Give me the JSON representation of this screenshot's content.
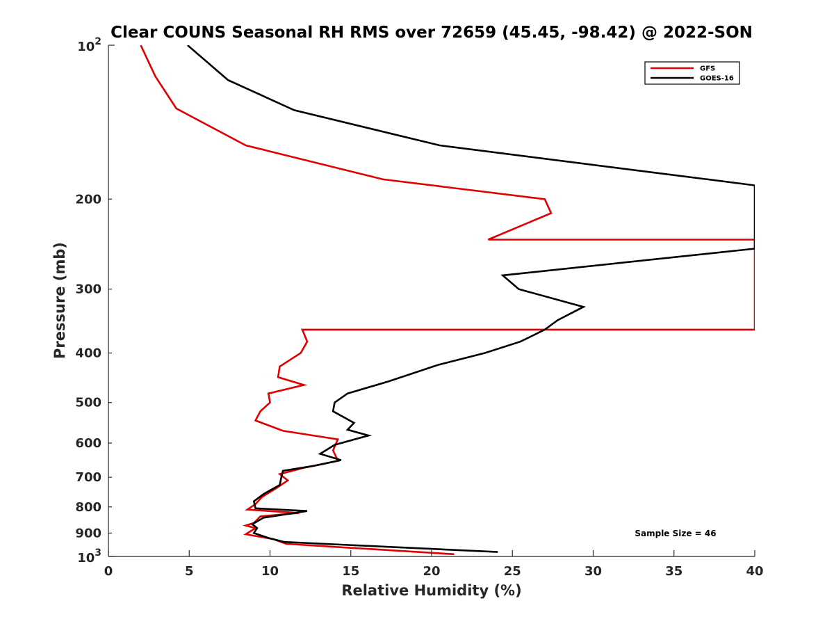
{
  "chart_data": {
    "type": "line",
    "title": "Clear COUNS Seasonal RH RMS over 72659 (45.45, -98.42) @ 2022-SON",
    "xlabel": "Relative Humidity (%)",
    "ylabel": "Pressure (mb)",
    "xlim": [
      0,
      40
    ],
    "ylim": [
      100,
      1000
    ],
    "y_scale": "log",
    "y_reversed": true,
    "x_ticks": [
      0,
      5,
      10,
      15,
      20,
      25,
      30,
      35,
      40
    ],
    "x_tick_labels": [
      "0",
      "5",
      "10",
      "15",
      "20",
      "25",
      "30",
      "35",
      "40"
    ],
    "y_ticks": [
      200,
      300,
      400,
      500,
      600,
      700,
      800,
      900
    ],
    "y_tick_labels": [
      "200",
      "300",
      "400",
      "500",
      "600",
      "700",
      "800",
      "900"
    ],
    "y_end_tick_base": "10",
    "y_top_exp": "2",
    "y_bottom_exp": "3",
    "legend_position": "top-right",
    "annotation": "Sample Size = 46",
    "series": [
      {
        "name": "GFS",
        "color": "#e00000",
        "points": [
          [
            2.0,
            100
          ],
          [
            2.9,
            115
          ],
          [
            4.2,
            133
          ],
          [
            8.5,
            157
          ],
          [
            17.0,
            183
          ],
          [
            27.0,
            200
          ],
          [
            27.4,
            213
          ],
          [
            23.5,
            240
          ],
          [
            40.0,
            240
          ],
          [
            40.0,
            360
          ],
          [
            12.0,
            360
          ],
          [
            12.3,
            380
          ],
          [
            11.9,
            400
          ],
          [
            10.6,
            425
          ],
          [
            10.5,
            446
          ],
          [
            12.1,
            462
          ],
          [
            9.9,
            480
          ],
          [
            10.0,
            500
          ],
          [
            9.4,
            520
          ],
          [
            9.1,
            542
          ],
          [
            10.8,
            568
          ],
          [
            14.2,
            590
          ],
          [
            13.9,
            620
          ],
          [
            14.2,
            650
          ],
          [
            12.0,
            672
          ],
          [
            10.6,
            690
          ],
          [
            11.1,
            710
          ],
          [
            10.4,
            735
          ],
          [
            9.5,
            765
          ],
          [
            9.1,
            790
          ],
          [
            8.6,
            810
          ],
          [
            11.8,
            822
          ],
          [
            9.4,
            835
          ],
          [
            9.0,
            860
          ],
          [
            8.5,
            870
          ],
          [
            9.1,
            880
          ],
          [
            8.5,
            905
          ],
          [
            10.2,
            925
          ],
          [
            11.0,
            945
          ],
          [
            21.4,
            990
          ]
        ]
      },
      {
        "name": "GOES-16",
        "color": "#000000",
        "points": [
          [
            4.9,
            100
          ],
          [
            7.4,
            117
          ],
          [
            11.5,
            134
          ],
          [
            20.5,
            157
          ],
          [
            40.0,
            188
          ],
          [
            40.0,
            250
          ],
          [
            24.4,
            282
          ],
          [
            25.4,
            300
          ],
          [
            29.4,
            325
          ],
          [
            27.8,
            345
          ],
          [
            27.0,
            360
          ],
          [
            25.5,
            380
          ],
          [
            23.3,
            400
          ],
          [
            20.4,
            422
          ],
          [
            17.3,
            455
          ],
          [
            14.8,
            480
          ],
          [
            14.0,
            500
          ],
          [
            13.9,
            520
          ],
          [
            15.2,
            548
          ],
          [
            14.8,
            565
          ],
          [
            16.1,
            580
          ],
          [
            14.0,
            605
          ],
          [
            13.1,
            630
          ],
          [
            14.4,
            648
          ],
          [
            12.7,
            665
          ],
          [
            10.8,
            680
          ],
          [
            10.7,
            700
          ],
          [
            10.6,
            725
          ],
          [
            9.6,
            755
          ],
          [
            9.0,
            780
          ],
          [
            9.1,
            805
          ],
          [
            12.3,
            815
          ],
          [
            9.6,
            840
          ],
          [
            8.9,
            865
          ],
          [
            9.2,
            880
          ],
          [
            9.0,
            900
          ],
          [
            9.9,
            920
          ],
          [
            10.9,
            937
          ],
          [
            24.1,
            980
          ]
        ]
      }
    ]
  }
}
